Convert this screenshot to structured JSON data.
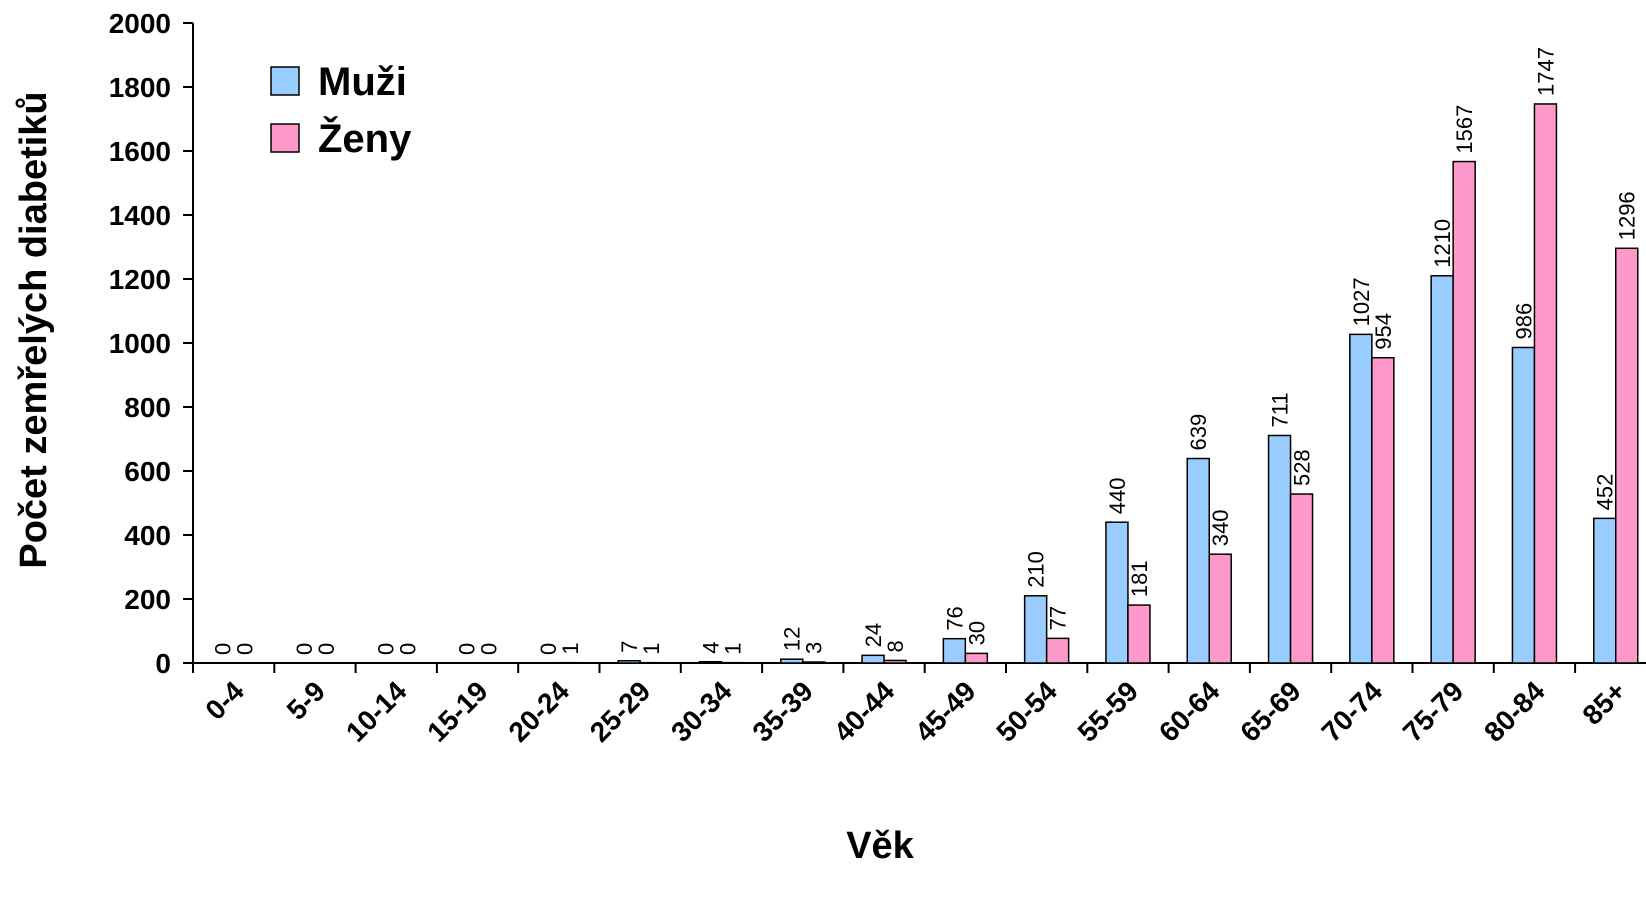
{
  "chart_data": {
    "type": "bar",
    "title": "",
    "xlabel": "Věk",
    "ylabel": "Počet zemřelých diabetiků",
    "ylim": [
      0,
      2000
    ],
    "yticks": [
      0,
      200,
      400,
      600,
      800,
      1000,
      1200,
      1400,
      1600,
      1800,
      2000
    ],
    "grid": false,
    "legend": "top-left",
    "categories": [
      "0-4",
      "5-9",
      "10-14",
      "15-19",
      "20-24",
      "25-29",
      "30-34",
      "35-39",
      "40-44",
      "45-49",
      "50-54",
      "55-59",
      "60-64",
      "65-69",
      "70-74",
      "75-79",
      "80-84",
      "85+"
    ],
    "series": [
      {
        "name": "Muži",
        "color": "#99ccff",
        "values": [
          0,
          0,
          0,
          0,
          0,
          7,
          4,
          12,
          24,
          76,
          210,
          440,
          639,
          711,
          1027,
          1210,
          986,
          452
        ]
      },
      {
        "name": "Ženy",
        "color": "#ff99cc",
        "values": [
          0,
          0,
          0,
          0,
          1,
          1,
          1,
          3,
          8,
          30,
          77,
          181,
          340,
          528,
          954,
          1567,
          1747,
          1296
        ]
      }
    ]
  }
}
